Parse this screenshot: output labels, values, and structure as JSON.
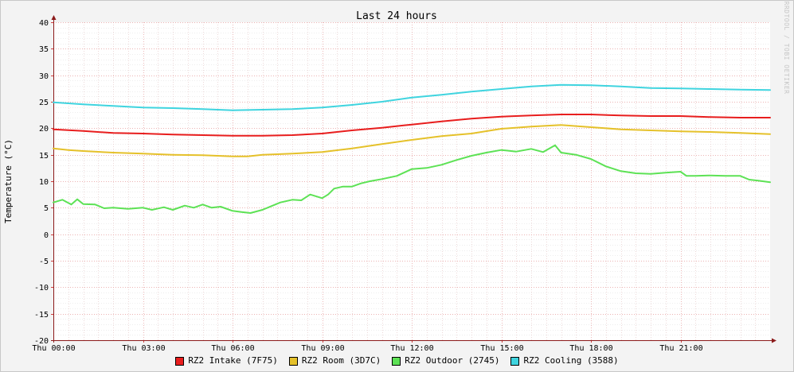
{
  "chart_data": {
    "type": "line",
    "title": "Last 24 hours",
    "ylabel": "Temperature (°C)",
    "xlabel": "",
    "ylim": [
      -20,
      40
    ],
    "xlim": [
      0,
      24
    ],
    "yticks": [
      40,
      35,
      30,
      25,
      20,
      15,
      10,
      5,
      0,
      -5,
      -10,
      -15,
      -20
    ],
    "xticks": [
      {
        "x": 0,
        "label": "Thu 00:00"
      },
      {
        "x": 3,
        "label": "Thu 03:00"
      },
      {
        "x": 6,
        "label": "Thu 06:00"
      },
      {
        "x": 9,
        "label": "Thu 09:00"
      },
      {
        "x": 12,
        "label": "Thu 12:00"
      },
      {
        "x": 15,
        "label": "Thu 15:00"
      },
      {
        "x": 18,
        "label": "Thu 18:00"
      },
      {
        "x": 21,
        "label": "Thu 21:00"
      }
    ],
    "grid": true,
    "legend_position": "bottom",
    "watermark": "RRDTOOL / TOBI OETIKER",
    "series": [
      {
        "name": "RZ2 Intake (7F75)",
        "color": "#e81d1d",
        "points": [
          [
            0,
            19.8
          ],
          [
            1,
            19.5
          ],
          [
            2,
            19.1
          ],
          [
            3,
            19.0
          ],
          [
            4,
            18.8
          ],
          [
            5,
            18.7
          ],
          [
            6,
            18.6
          ],
          [
            7,
            18.6
          ],
          [
            8,
            18.7
          ],
          [
            9,
            19.0
          ],
          [
            10,
            19.6
          ],
          [
            11,
            20.1
          ],
          [
            12,
            20.7
          ],
          [
            13,
            21.3
          ],
          [
            14,
            21.8
          ],
          [
            15,
            22.2
          ],
          [
            16,
            22.4
          ],
          [
            17,
            22.6
          ],
          [
            18,
            22.6
          ],
          [
            19,
            22.4
          ],
          [
            20,
            22.3
          ],
          [
            21,
            22.3
          ],
          [
            22,
            22.1
          ],
          [
            23,
            22.0
          ],
          [
            24,
            22.0
          ]
        ]
      },
      {
        "name": "RZ2 Room (3D7C)",
        "color": "#e5c12a",
        "points": [
          [
            0,
            16.2
          ],
          [
            0.5,
            15.9
          ],
          [
            1,
            15.7
          ],
          [
            2,
            15.4
          ],
          [
            3,
            15.2
          ],
          [
            4,
            15.0
          ],
          [
            5,
            14.9
          ],
          [
            6,
            14.7
          ],
          [
            6.5,
            14.7
          ],
          [
            7,
            15.0
          ],
          [
            8,
            15.2
          ],
          [
            9,
            15.5
          ],
          [
            10,
            16.2
          ],
          [
            11,
            17.0
          ],
          [
            12,
            17.8
          ],
          [
            13,
            18.5
          ],
          [
            14,
            19.0
          ],
          [
            15,
            19.9
          ],
          [
            16,
            20.3
          ],
          [
            17,
            20.6
          ],
          [
            18,
            20.2
          ],
          [
            19,
            19.8
          ],
          [
            20,
            19.6
          ],
          [
            21,
            19.4
          ],
          [
            22,
            19.3
          ],
          [
            23,
            19.1
          ],
          [
            24,
            18.9
          ]
        ]
      },
      {
        "name": "RZ2 Outdoor (2745)",
        "color": "#5de255",
        "points": [
          [
            0,
            6.0
          ],
          [
            0.3,
            6.5
          ],
          [
            0.6,
            5.6
          ],
          [
            0.8,
            6.6
          ],
          [
            1,
            5.7
          ],
          [
            1.4,
            5.6
          ],
          [
            1.7,
            4.9
          ],
          [
            2,
            5.0
          ],
          [
            2.5,
            4.8
          ],
          [
            3,
            5.0
          ],
          [
            3.3,
            4.6
          ],
          [
            3.7,
            5.1
          ],
          [
            4,
            4.6
          ],
          [
            4.4,
            5.4
          ],
          [
            4.7,
            5.0
          ],
          [
            5,
            5.6
          ],
          [
            5.3,
            5.0
          ],
          [
            5.6,
            5.2
          ],
          [
            6,
            4.4
          ],
          [
            6.3,
            4.2
          ],
          [
            6.6,
            4.0
          ],
          [
            7,
            4.6
          ],
          [
            7.3,
            5.3
          ],
          [
            7.6,
            6.0
          ],
          [
            8,
            6.5
          ],
          [
            8.3,
            6.4
          ],
          [
            8.6,
            7.5
          ],
          [
            9,
            6.8
          ],
          [
            9.2,
            7.5
          ],
          [
            9.4,
            8.6
          ],
          [
            9.7,
            9.0
          ],
          [
            10,
            9.0
          ],
          [
            10.3,
            9.6
          ],
          [
            10.6,
            10.0
          ],
          [
            11,
            10.4
          ],
          [
            11.5,
            11.0
          ],
          [
            12,
            12.3
          ],
          [
            12.5,
            12.5
          ],
          [
            13,
            13.1
          ],
          [
            13.5,
            14.0
          ],
          [
            14,
            14.8
          ],
          [
            14.5,
            15.4
          ],
          [
            15,
            15.9
          ],
          [
            15.5,
            15.6
          ],
          [
            16,
            16.1
          ],
          [
            16.4,
            15.5
          ],
          [
            16.8,
            16.8
          ],
          [
            17,
            15.4
          ],
          [
            17.5,
            15.0
          ],
          [
            18,
            14.2
          ],
          [
            18.5,
            12.8
          ],
          [
            19,
            11.9
          ],
          [
            19.5,
            11.5
          ],
          [
            20,
            11.4
          ],
          [
            20.5,
            11.6
          ],
          [
            21,
            11.8
          ],
          [
            21.2,
            11.0
          ],
          [
            21.5,
            11.0
          ],
          [
            22,
            11.1
          ],
          [
            22.5,
            11.0
          ],
          [
            23,
            11.0
          ],
          [
            23.3,
            10.3
          ],
          [
            23.6,
            10.1
          ],
          [
            24,
            9.8
          ]
        ]
      },
      {
        "name": "RZ2 Cooling (3588)",
        "color": "#3fd4df",
        "points": [
          [
            0,
            24.9
          ],
          [
            1,
            24.5
          ],
          [
            2,
            24.2
          ],
          [
            3,
            23.9
          ],
          [
            4,
            23.8
          ],
          [
            5,
            23.6
          ],
          [
            6,
            23.4
          ],
          [
            7,
            23.5
          ],
          [
            8,
            23.6
          ],
          [
            9,
            23.9
          ],
          [
            10,
            24.4
          ],
          [
            11,
            25.0
          ],
          [
            12,
            25.8
          ],
          [
            13,
            26.3
          ],
          [
            14,
            26.9
          ],
          [
            15,
            27.4
          ],
          [
            16,
            27.9
          ],
          [
            17,
            28.2
          ],
          [
            18,
            28.1
          ],
          [
            19,
            27.9
          ],
          [
            20,
            27.6
          ],
          [
            21,
            27.5
          ],
          [
            22,
            27.4
          ],
          [
            23,
            27.3
          ],
          [
            24,
            27.2
          ]
        ]
      }
    ]
  }
}
